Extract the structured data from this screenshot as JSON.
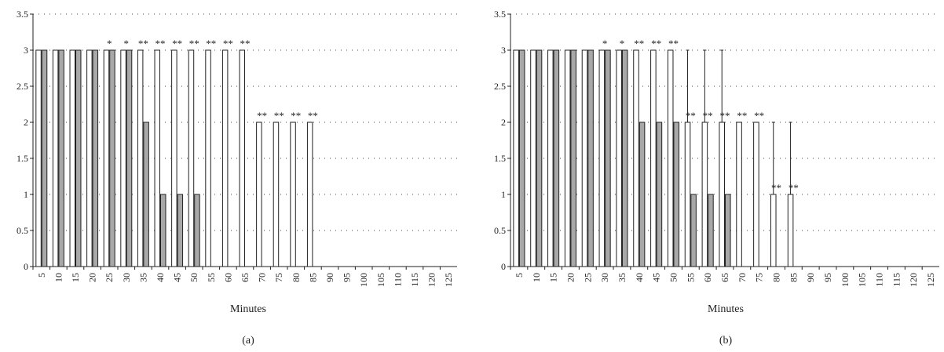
{
  "chart_data": [
    {
      "type": "bar",
      "panel_label": "(a)",
      "xlabel": "Minutes",
      "ylabel": "",
      "ylim": [
        0,
        3.5
      ],
      "yticks": [
        "0",
        "0.5",
        "1",
        "1.5",
        "2",
        "2.5",
        "3",
        "3.5"
      ],
      "categories": [
        "5",
        "10",
        "15",
        "20",
        "25",
        "30",
        "35",
        "40",
        "45",
        "50",
        "55",
        "60",
        "65",
        "70",
        "75",
        "80",
        "85",
        "90",
        "95",
        "100",
        "105",
        "110",
        "115",
        "120",
        "125"
      ],
      "grid": "horizontal-dotted",
      "series": [
        {
          "values": [
            3,
            3,
            3,
            3,
            3,
            3,
            3,
            3,
            3,
            3,
            3,
            3,
            3,
            2,
            2,
            2,
            2,
            0,
            0,
            0,
            0,
            0,
            0,
            0,
            0
          ],
          "errors": [
            0,
            0,
            0,
            0,
            0,
            0,
            0,
            0,
            0,
            0,
            0,
            0,
            0,
            0,
            0,
            0,
            0,
            0,
            0,
            0,
            0,
            0,
            0,
            0,
            0
          ],
          "fill": "#ffffff"
        },
        {
          "values": [
            3,
            3,
            3,
            3,
            3,
            3,
            2,
            1,
            1,
            1,
            0,
            0,
            0,
            0,
            0,
            0,
            0,
            0,
            0,
            0,
            0,
            0,
            0,
            0,
            0
          ],
          "errors": [
            0,
            0,
            0,
            0,
            0,
            0,
            0,
            0,
            0,
            0,
            0,
            0,
            0,
            0,
            0,
            0,
            0,
            0,
            0,
            0,
            0,
            0,
            0,
            0,
            0
          ],
          "fill": "#a8a8a8"
        }
      ],
      "annotations": [
        "",
        "",
        "",
        "",
        "*",
        "*",
        "**",
        "**",
        "**",
        "**",
        "**",
        "**",
        "**",
        "**",
        "**",
        "**",
        "**",
        "",
        "",
        "",
        "",
        "",
        "",
        "",
        ""
      ]
    },
    {
      "type": "bar",
      "panel_label": "(b)",
      "xlabel": "Minutes",
      "ylabel": "",
      "ylim": [
        0,
        3.5
      ],
      "yticks": [
        "0",
        "0.5",
        "1",
        "1.5",
        "2",
        "2.5",
        "3",
        "3.5"
      ],
      "categories": [
        "5",
        "10",
        "15",
        "20",
        "25",
        "30",
        "35",
        "40",
        "45",
        "50",
        "55",
        "60",
        "65",
        "70",
        "75",
        "80",
        "85",
        "90",
        "95",
        "100",
        "105",
        "110",
        "115",
        "120",
        "125"
      ],
      "grid": "horizontal-dotted",
      "series": [
        {
          "values": [
            3,
            3,
            3,
            3,
            3,
            3,
            3,
            3,
            3,
            3,
            2,
            2,
            2,
            2,
            2,
            1,
            1,
            0,
            0,
            0,
            0,
            0,
            0,
            0,
            0
          ],
          "errors": [
            0,
            0,
            0,
            0,
            0,
            0,
            0,
            0,
            0,
            0,
            1,
            1,
            1,
            0,
            0,
            1,
            1,
            0,
            0,
            0,
            0,
            0,
            0,
            0,
            0
          ],
          "fill": "#ffffff"
        },
        {
          "values": [
            3,
            3,
            3,
            3,
            3,
            3,
            3,
            2,
            2,
            2,
            1,
            1,
            1,
            0,
            0,
            0,
            0,
            0,
            0,
            0,
            0,
            0,
            0,
            0,
            0
          ],
          "errors": [
            0,
            0,
            0,
            0,
            0,
            0,
            0,
            0,
            0,
            0,
            0,
            0,
            0,
            0,
            0,
            0,
            0,
            0,
            0,
            0,
            0,
            0,
            0,
            0,
            0
          ],
          "fill": "#a8a8a8"
        }
      ],
      "annotations": [
        "",
        "",
        "",
        "",
        "",
        "*",
        "*",
        "**",
        "**",
        "**",
        "**",
        "**",
        "**",
        "**",
        "**",
        "**",
        "**",
        "",
        "",
        "",
        "",
        "",
        "",
        "",
        ""
      ]
    }
  ]
}
